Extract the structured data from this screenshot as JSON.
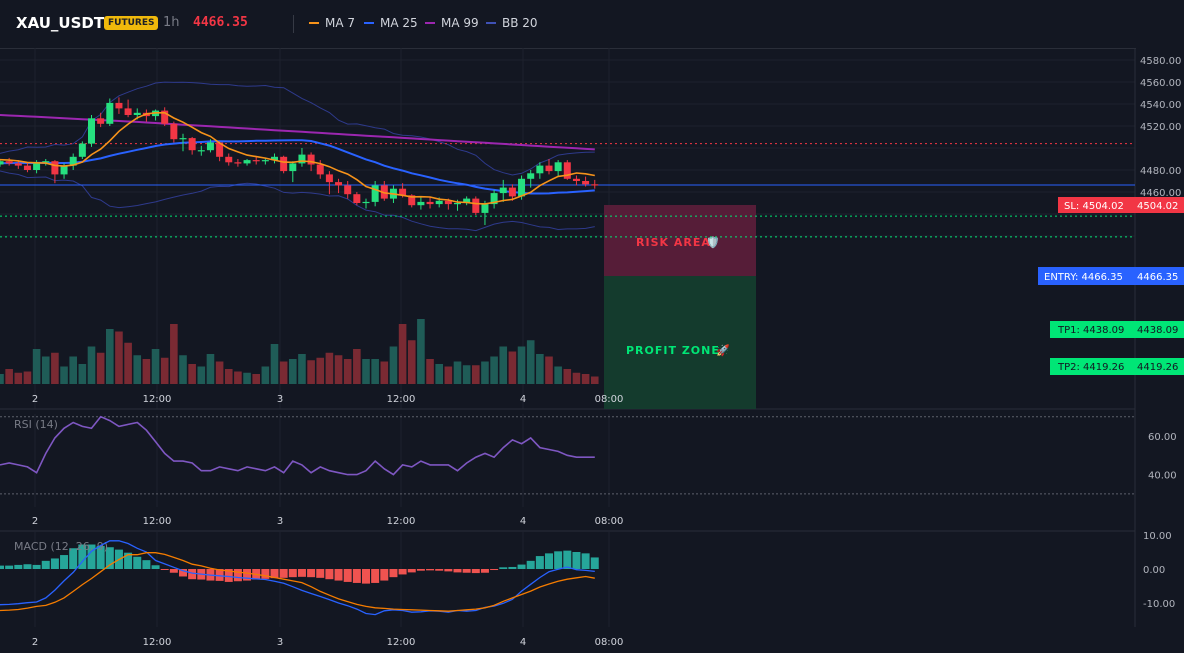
{
  "header": {
    "symbol": "XAU_USDT",
    "badge": "FUTURES",
    "interval": "1h",
    "price": "4466.35",
    "legend": [
      {
        "label": "MA 7",
        "color": "#f7931a"
      },
      {
        "label": "MA 25",
        "color": "#2962ff"
      },
      {
        "label": "MA 99",
        "color": "#9c27b0"
      },
      {
        "label": "BB 20",
        "color": "#3f51b5"
      }
    ]
  },
  "labels": {
    "sl": "SL: 4504.02",
    "sl_value": "4504.02",
    "entry": "ENTRY: 4466.35",
    "entry_value": "4466.35",
    "tp1": "TP1: 4438.09",
    "tp1_value": "4438.09",
    "tp2": "TP2: 4419.26",
    "tp2_value": "4419.26",
    "risk_area": "RISK AREA",
    "risk_icon": "🛡️",
    "profit_zone": "PROFIT ZONE",
    "profit_icon": "🚀"
  },
  "colors": {
    "up": "#26a69a",
    "down": "#ef5350",
    "sl": "#f23645",
    "entry": "#2962ff",
    "tp": "#00e676",
    "rsi": "#7e57c2",
    "macd": "#2962ff",
    "signal": "#f57c00"
  },
  "chart_data": [
    {
      "type": "candlestick",
      "title": "",
      "x_ticks": [
        "2",
        "12:00",
        "3",
        "12:00",
        "4",
        "08:00"
      ],
      "y_ticks": [
        "4580.00",
        "4560.00",
        "4540.00",
        "4520.00",
        "4480.00",
        "4460.00"
      ],
      "ylim": [
        4400,
        4590
      ],
      "levels": {
        "sl": 4504.02,
        "entry": 4466.35,
        "tp1": 4438.09,
        "tp2": 4419.26
      },
      "ohlc": [
        [
          4485,
          4490,
          4483,
          4488
        ],
        [
          4488,
          4491,
          4484,
          4486
        ],
        [
          4486,
          4489,
          4481,
          4484
        ],
        [
          4484,
          4487,
          4478,
          4480
        ],
        [
          4480,
          4489,
          4477,
          4487
        ],
        [
          4487,
          4490,
          4484,
          4488
        ],
        [
          4488,
          4489,
          4468,
          4476
        ],
        [
          4476,
          4486,
          4472,
          4484
        ],
        [
          4484,
          4495,
          4480,
          4492
        ],
        [
          4492,
          4506,
          4490,
          4504
        ],
        [
          4504,
          4530,
          4501,
          4527
        ],
        [
          4527,
          4532,
          4519,
          4522
        ],
        [
          4522,
          4545,
          4520,
          4541
        ],
        [
          4541,
          4546,
          4531,
          4536
        ],
        [
          4536,
          4544,
          4528,
          4530
        ],
        [
          4530,
          4536,
          4526,
          4532
        ],
        [
          4532,
          4535,
          4524,
          4529
        ],
        [
          4529,
          4535,
          4525,
          4534
        ],
        [
          4534,
          4537,
          4520,
          4522
        ],
        [
          4522,
          4524,
          4505,
          4508
        ],
        [
          4508,
          4513,
          4497,
          4509
        ],
        [
          4509,
          4510,
          4494,
          4498
        ],
        [
          4498,
          4502,
          4493,
          4498
        ],
        [
          4498,
          4508,
          4496,
          4505
        ],
        [
          4505,
          4506,
          4488,
          4492
        ],
        [
          4492,
          4495,
          4484,
          4487
        ],
        [
          4487,
          4490,
          4483,
          4486
        ],
        [
          4486,
          4490,
          4484,
          4489
        ],
        [
          4489,
          4492,
          4485,
          4488
        ],
        [
          4488,
          4491,
          4485,
          4489
        ],
        [
          4489,
          4495,
          4486,
          4492
        ],
        [
          4492,
          4493,
          4477,
          4479
        ],
        [
          4479,
          4488,
          4469,
          4486
        ],
        [
          4486,
          4500,
          4483,
          4494
        ],
        [
          4494,
          4496,
          4479,
          4485
        ],
        [
          4485,
          4489,
          4472,
          4476
        ],
        [
          4476,
          4479,
          4458,
          4469
        ],
        [
          4469,
          4472,
          4459,
          4466
        ],
        [
          4466,
          4470,
          4454,
          4458
        ],
        [
          4458,
          4460,
          4448,
          4450
        ],
        [
          4450,
          4454,
          4445,
          4451
        ],
        [
          4451,
          4470,
          4447,
          4466
        ],
        [
          4466,
          4470,
          4452,
          4454
        ],
        [
          4454,
          4466,
          4450,
          4463
        ],
        [
          4463,
          4468,
          4455,
          4457
        ],
        [
          4457,
          4458,
          4446,
          4448
        ],
        [
          4448,
          4455,
          4444,
          4451
        ],
        [
          4451,
          4455,
          4445,
          4449
        ],
        [
          4449,
          4455,
          4446,
          4452
        ],
        [
          4452,
          4454,
          4444,
          4449
        ],
        [
          4449,
          4453,
          4443,
          4450
        ],
        [
          4450,
          4456,
          4448,
          4454
        ],
        [
          4454,
          4456,
          4439,
          4441
        ],
        [
          4441,
          4452,
          4430,
          4449
        ],
        [
          4449,
          4462,
          4445,
          4459
        ],
        [
          4459,
          4471,
          4451,
          4464
        ],
        [
          4464,
          4467,
          4452,
          4456
        ],
        [
          4456,
          4475,
          4453,
          4472
        ],
        [
          4472,
          4480,
          4464,
          4477
        ],
        [
          4477,
          4487,
          4472,
          4484
        ],
        [
          4484,
          4490,
          4476,
          4479
        ],
        [
          4479,
          4489,
          4474,
          4487
        ],
        [
          4487,
          4489,
          4471,
          4472
        ],
        [
          4472,
          4475,
          4466,
          4470
        ],
        [
          4470,
          4474,
          4465,
          4467
        ],
        [
          4467,
          4471,
          4463,
          4466
        ]
      ],
      "volume": [
        8,
        12,
        9,
        10,
        28,
        22,
        25,
        14,
        22,
        16,
        30,
        25,
        44,
        42,
        33,
        23,
        20,
        28,
        21,
        48,
        23,
        16,
        14,
        24,
        18,
        12,
        10,
        9,
        8,
        14,
        32,
        18,
        20,
        24,
        19,
        21,
        25,
        23,
        20,
        28,
        20,
        20,
        18,
        30,
        48,
        35,
        52,
        20,
        16,
        14,
        18,
        15,
        15,
        18,
        22,
        30,
        26,
        30,
        35,
        24,
        22,
        14,
        12,
        9,
        8,
        6
      ]
    },
    {
      "type": "line",
      "title": "RSI (14)",
      "y_ticks": [
        "60.00",
        "40.00"
      ],
      "ylim": [
        28,
        75
      ],
      "series": [
        {
          "name": "RSI (14)",
          "values": [
            45,
            46,
            45,
            44,
            41,
            51,
            59,
            64,
            67,
            65,
            64,
            70,
            68,
            65,
            66,
            67,
            63,
            57,
            51,
            47,
            47,
            46,
            42,
            42,
            44,
            43,
            42,
            44,
            43,
            42,
            44,
            41,
            47,
            45,
            41,
            44,
            42,
            41,
            40,
            40,
            42,
            47,
            43,
            40,
            45,
            44,
            47,
            45,
            45,
            45,
            42,
            46,
            49,
            51,
            49,
            54,
            58,
            56,
            59,
            54,
            53,
            52,
            50,
            49,
            49,
            49
          ]
        }
      ]
    },
    {
      "type": "bar",
      "title": "MACD (12, 26, 9)",
      "y_ticks": [
        "10.00",
        "0.00",
        "-10.00"
      ],
      "ylim": [
        -14.5,
        11.5
      ],
      "histogram": [
        1,
        1,
        1.2,
        1.4,
        1.2,
        2.4,
        3.1,
        4.1,
        6.1,
        7.2,
        7.2,
        6.8,
        6.4,
        5.7,
        4.8,
        3.6,
        2.6,
        1.1,
        -0.1,
        -1.1,
        -2.2,
        -3,
        -3.1,
        -3.4,
        -3.5,
        -3.8,
        -3.6,
        -3.4,
        -3.1,
        -2.9,
        -2.7,
        -2.6,
        -2.4,
        -2.3,
        -2.4,
        -2.6,
        -3,
        -3.4,
        -3.8,
        -4.1,
        -4.3,
        -4.1,
        -3.4,
        -2.4,
        -1.6,
        -1,
        -0.5,
        -0.4,
        -0.5,
        -0.7,
        -1,
        -1.1,
        -1.2,
        -1.1,
        -0.3,
        0.5,
        0.6,
        1.3,
        2.4,
        3.8,
        4.6,
        5.2,
        5.4,
        5,
        4.6,
        3.4
      ],
      "series": [
        {
          "name": "MACD",
          "values": [
            -10.5,
            -10.4,
            -10.2,
            -9.9,
            -9.7,
            -8.5,
            -6.2,
            -3.5,
            -1,
            2.2,
            5.2,
            6.9,
            8.3,
            8.3,
            7.5,
            6.1,
            5,
            2.5,
            1.5,
            0.5,
            -0.5,
            -1.2,
            -1.5,
            -1.8,
            -2,
            -2.2,
            -2.5,
            -2.7,
            -2.9,
            -3.1,
            -3.6,
            -4.2,
            -5.2,
            -6.3,
            -7.2,
            -8.1,
            -9,
            -10,
            -10.8,
            -11.8,
            -13.1,
            -13.4,
            -12.3,
            -12,
            -12.2,
            -12.7,
            -12.6,
            -12.3,
            -12.4,
            -12.7,
            -12.2,
            -12.4,
            -12.2,
            -11.3,
            -10.9,
            -10.1,
            -8.9,
            -6.5,
            -4.5,
            -2.5,
            -0.8,
            -0.1,
            0.6,
            -0.2,
            -0.4,
            -0.7
          ]
        },
        {
          "name": "Signal",
          "values": [
            -12.2,
            -12.1,
            -11.9,
            -11.5,
            -11,
            -10.7,
            -9.8,
            -8.5,
            -6.6,
            -4.6,
            -2.8,
            -0.8,
            1.2,
            2.8,
            4.2,
            4.2,
            4.8,
            4.8,
            4.3,
            3.4,
            2.5,
            1.4,
            0.9,
            0.2,
            -0.3,
            -0.6,
            -0.9,
            -1.2,
            -1.6,
            -2,
            -2.5,
            -3,
            -3.5,
            -4,
            -5.2,
            -6.6,
            -7.7,
            -8.8,
            -9.6,
            -10.4,
            -11,
            -11.4,
            -11.6,
            -11.8,
            -11.9,
            -12,
            -12.1,
            -12.2,
            -12.3,
            -12.4,
            -12.2,
            -12,
            -11.8,
            -11.4,
            -10.7,
            -9.5,
            -8.5,
            -7.5,
            -6.5,
            -5.3,
            -4.4,
            -3.6,
            -3,
            -2.6,
            -2.2,
            -2.7
          ]
        }
      ]
    }
  ]
}
